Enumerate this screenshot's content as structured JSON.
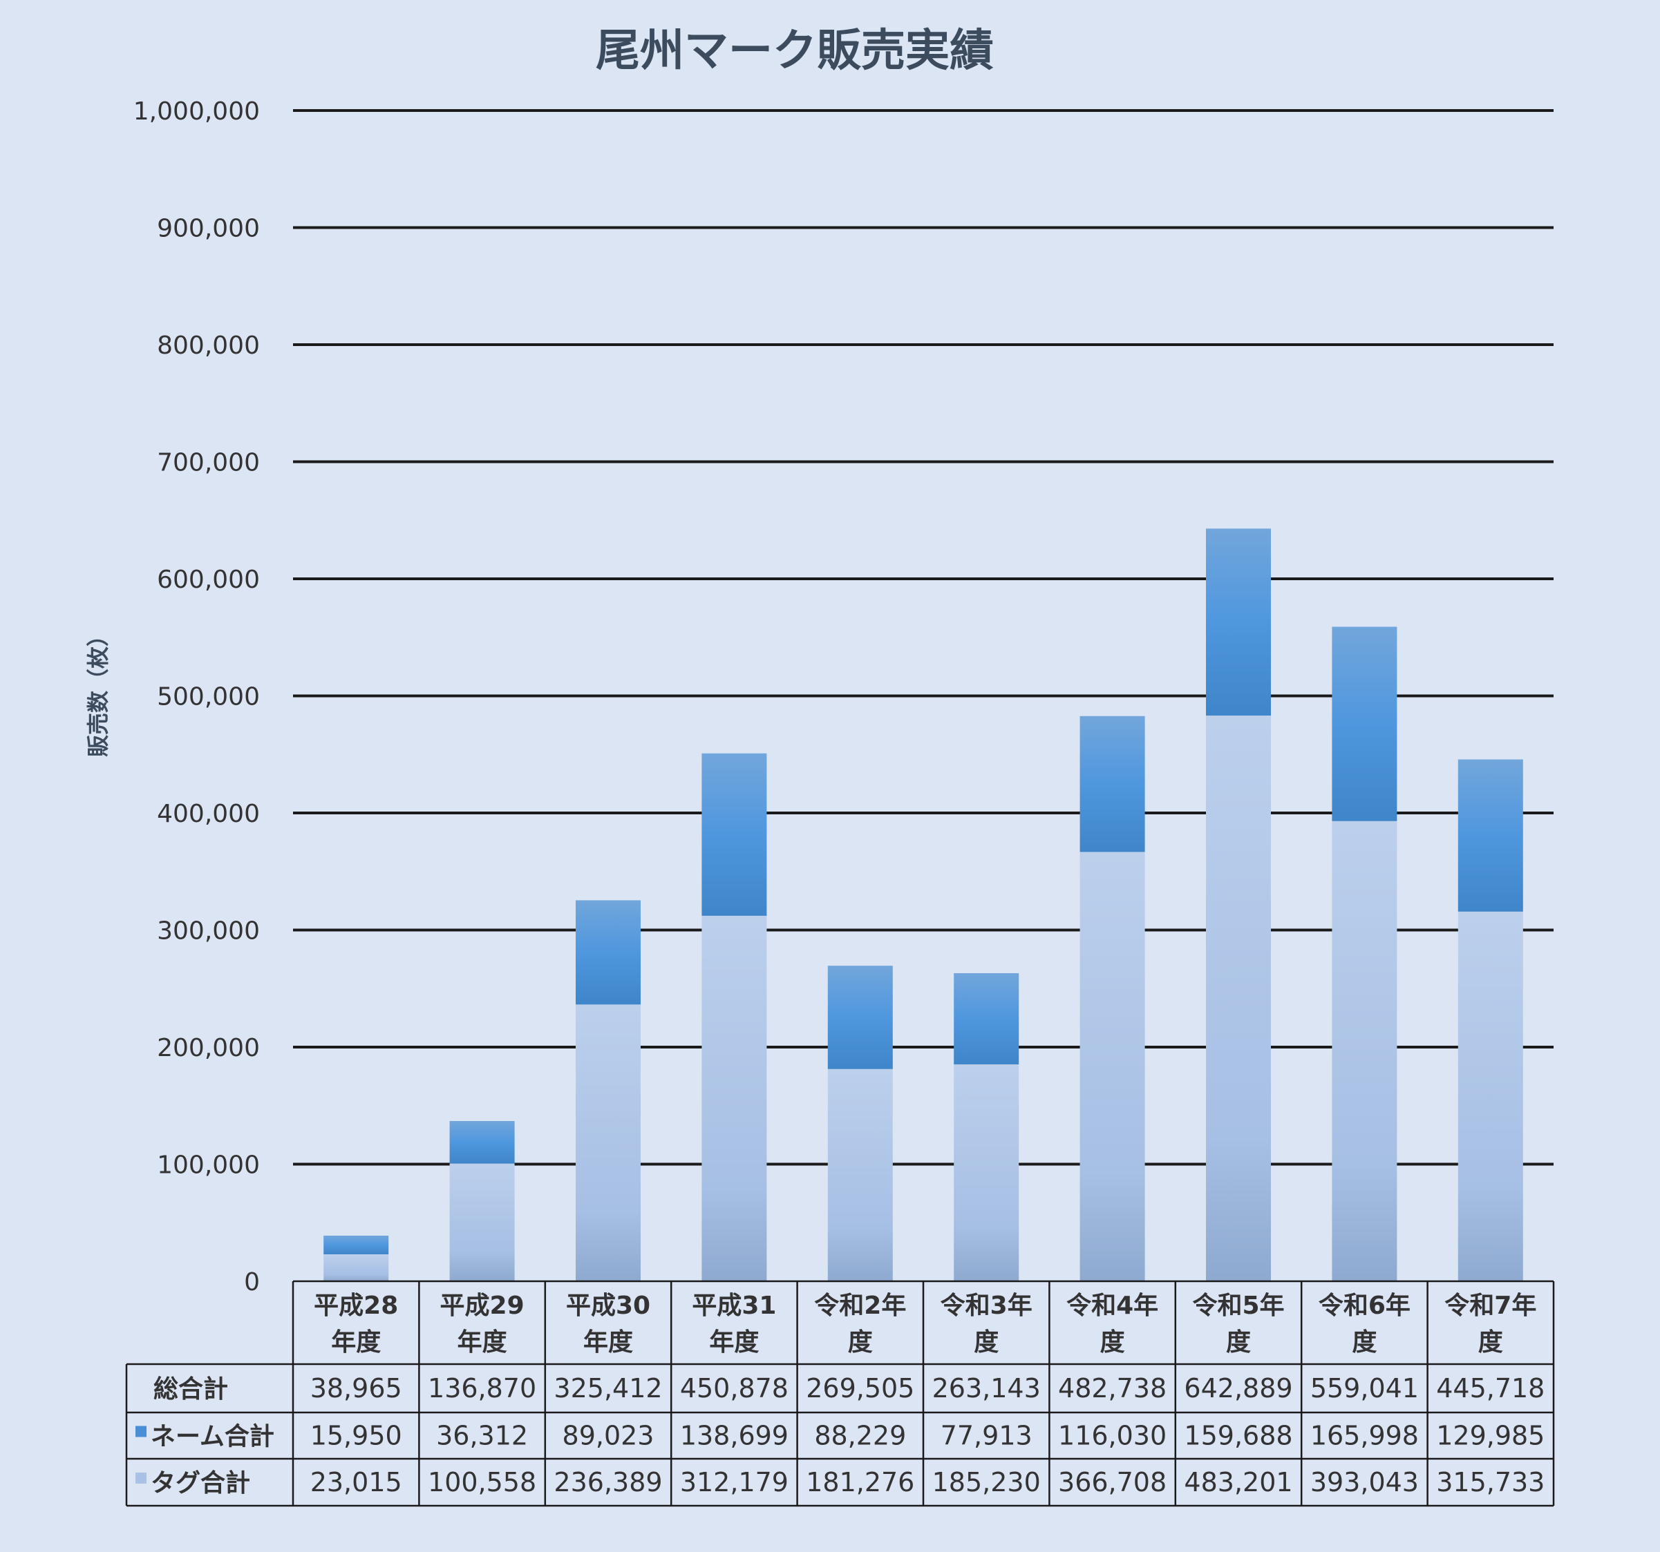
{
  "chart_data": {
    "type": "bar",
    "stacked": true,
    "title": "尾州マーク販売実績",
    "ylabel": "販売数（枚）",
    "xlabel": "",
    "ylim": [
      0,
      1000000
    ],
    "y_ticks": [
      "0",
      "100,000",
      "200,000",
      "300,000",
      "400,000",
      "500,000",
      "600,000",
      "700,000",
      "800,000",
      "900,000",
      "1,000,000"
    ],
    "grid": true,
    "legend": "data-table",
    "categories": [
      [
        "平成28",
        "年度"
      ],
      [
        "平成29",
        "年度"
      ],
      [
        "平成30",
        "年度"
      ],
      [
        "平成31",
        "年度"
      ],
      [
        "令和2年",
        "度"
      ],
      [
        "令和3年",
        "度"
      ],
      [
        "令和4年",
        "度"
      ],
      [
        "令和5年",
        "度"
      ],
      [
        "令和6年",
        "度"
      ],
      [
        "令和7年",
        "度"
      ]
    ],
    "series": [
      {
        "name": "タグ合計",
        "color": "#a9c1e4",
        "values": [
          23015,
          100558,
          236389,
          312179,
          181276,
          185230,
          366708,
          483201,
          393043,
          315733
        ],
        "labels": [
          "23,015",
          "100,558",
          "236,389",
          "312,179",
          "181,276",
          "185,230",
          "366,708",
          "483,201",
          "393,043",
          "315,733"
        ]
      },
      {
        "name": "ネーム合計",
        "color": "#4a8fd6",
        "values": [
          15950,
          36312,
          89023,
          138699,
          88229,
          77913,
          116030,
          159688,
          165998,
          129985
        ],
        "labels": [
          "15,950",
          "36,312",
          "89,023",
          "138,699",
          "88,229",
          "77,913",
          "116,030",
          "159,688",
          "165,998",
          "129,985"
        ]
      }
    ],
    "totals": {
      "name": "総合計",
      "values": [
        38965,
        136870,
        325412,
        450878,
        269505,
        263143,
        482738,
        642889,
        559041,
        445718
      ],
      "labels": [
        "38,965",
        "136,870",
        "325,412",
        "450,878",
        "269,505",
        "263,143",
        "482,738",
        "642,889",
        "559,041",
        "445,718"
      ]
    }
  }
}
